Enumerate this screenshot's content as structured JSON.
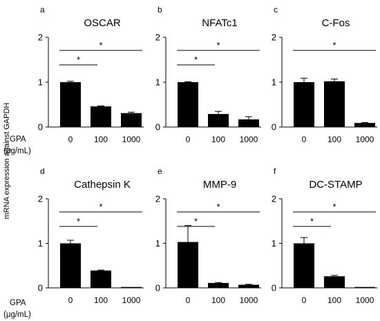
{
  "ylabel": "mRNA expression against GAPDH",
  "xtitle_line1": "GPA",
  "xtitle_line2": "(μg/mL)",
  "chart_data": [
    {
      "type": "bar",
      "letter": "a",
      "title": "OSCAR",
      "categories": [
        "0",
        "100",
        "1000"
      ],
      "values": [
        1.0,
        0.46,
        0.31
      ],
      "errors": [
        0.02,
        0.01,
        0.02
      ],
      "ylim": [
        0,
        2
      ],
      "yticks": [
        "0",
        "1",
        "2"
      ],
      "significance": [
        {
          "from": 0,
          "to": 1,
          "label": "*"
        },
        {
          "from": 0,
          "to": 2,
          "label": "*"
        }
      ]
    },
    {
      "type": "bar",
      "letter": "b",
      "title": "NFATc1",
      "categories": [
        "0",
        "100",
        "1000"
      ],
      "values": [
        1.0,
        0.29,
        0.17
      ],
      "errors": [
        0.01,
        0.06,
        0.06
      ],
      "ylim": [
        0,
        2
      ],
      "yticks": [
        "0",
        "1",
        "2"
      ],
      "significance": [
        {
          "from": 0,
          "to": 1,
          "label": "*"
        },
        {
          "from": 0,
          "to": 2,
          "label": "*"
        }
      ]
    },
    {
      "type": "bar",
      "letter": "c",
      "title": "C-Fos",
      "categories": [
        "0",
        "100",
        "1000"
      ],
      "values": [
        1.0,
        1.02,
        0.09
      ],
      "errors": [
        0.09,
        0.05,
        0.01
      ],
      "ylim": [
        0,
        2
      ],
      "yticks": [
        "0",
        "1",
        "2"
      ],
      "significance": [
        {
          "from": 0,
          "to": 2,
          "label": "*"
        }
      ]
    },
    {
      "type": "bar",
      "letter": "d",
      "title": "Cathepsin K",
      "categories": [
        "0",
        "100",
        "1000"
      ],
      "values": [
        1.0,
        0.39,
        0.02
      ],
      "errors": [
        0.07,
        0.01,
        0.003
      ],
      "ylim": [
        0,
        2
      ],
      "yticks": [
        "0",
        "1",
        "2"
      ],
      "significance": [
        {
          "from": 0,
          "to": 1,
          "label": "*"
        },
        {
          "from": 0,
          "to": 2,
          "label": "*"
        }
      ]
    },
    {
      "type": "bar",
      "letter": "e",
      "title": "MMP-9",
      "categories": [
        "0",
        "100",
        "1000"
      ],
      "values": [
        1.03,
        0.11,
        0.07
      ],
      "errors": [
        0.37,
        0.01,
        0.01
      ],
      "ylim": [
        0,
        2
      ],
      "yticks": [
        "0",
        "1",
        "2"
      ],
      "significance": [
        {
          "from": 0,
          "to": 1,
          "label": "*"
        },
        {
          "from": 0,
          "to": 2,
          "label": "*"
        }
      ]
    },
    {
      "type": "bar",
      "letter": "f",
      "title": "DC-STAMP",
      "categories": [
        "0",
        "100",
        "1000"
      ],
      "values": [
        1.0,
        0.26,
        0.02
      ],
      "errors": [
        0.13,
        0.02,
        0.003
      ],
      "ylim": [
        0,
        2
      ],
      "yticks": [
        "0",
        "1",
        "2"
      ],
      "significance": [
        {
          "from": 0,
          "to": 1,
          "label": "*"
        },
        {
          "from": 0,
          "to": 2,
          "label": "*"
        }
      ]
    }
  ]
}
